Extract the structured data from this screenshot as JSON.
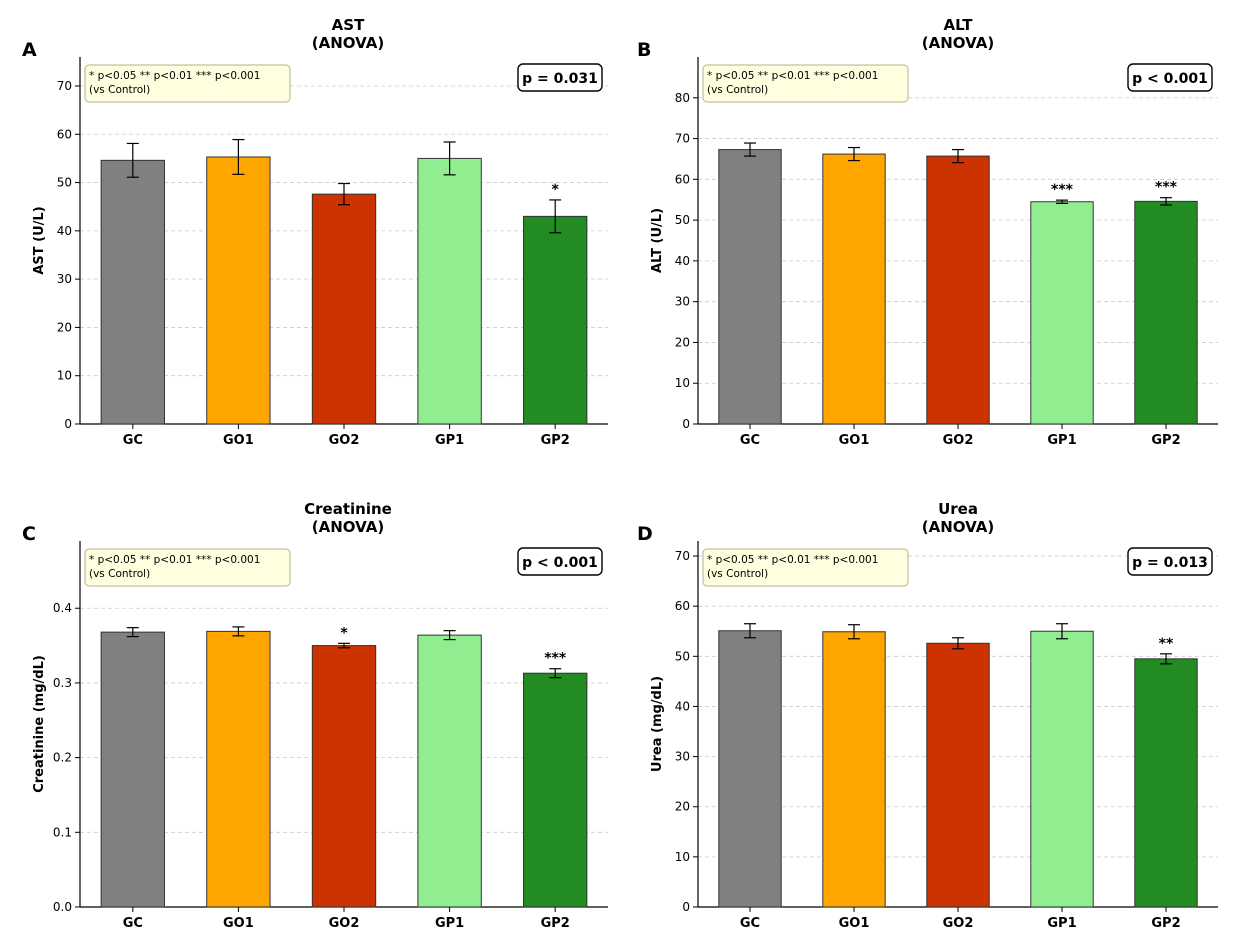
{
  "groups": [
    "GC",
    "GO1",
    "GO2",
    "GP1",
    "GP2"
  ],
  "colors": {
    "GC": "#808080",
    "GO1": "#FFA500",
    "GO2": "#CC3300",
    "GP1": "#90EE90",
    "GP2": "#228B22",
    "legend_bg": "#FFFFE0",
    "grid": "#cccccc"
  },
  "legend": {
    "line1": "* p<0.05  ** p<0.01  *** p<0.001",
    "line2": "(vs Control)"
  },
  "chart_data": [
    {
      "panel": "A",
      "type": "bar",
      "title_line1": "AST",
      "title_line2": "(ANOVA)",
      "ylabel": "AST (U/L)",
      "categories": [
        "GC",
        "GO1",
        "GO2",
        "GP1",
        "GP2"
      ],
      "values": [
        54.6,
        55.3,
        47.6,
        55.0,
        43.0
      ],
      "errors": [
        3.5,
        3.6,
        2.2,
        3.4,
        3.4
      ],
      "significance": [
        "",
        "",
        "",
        "",
        "*"
      ],
      "pvalue": "p = 0.031",
      "ylim": [
        0,
        76
      ],
      "yticks": [
        0,
        10,
        20,
        30,
        40,
        50,
        60,
        70
      ],
      "grid": true
    },
    {
      "panel": "B",
      "type": "bar",
      "title_line1": "ALT",
      "title_line2": "(ANOVA)",
      "ylabel": "ALT (U/L)",
      "categories": [
        "GC",
        "GO1",
        "GO2",
        "GP1",
        "GP2"
      ],
      "values": [
        67.3,
        66.2,
        65.7,
        54.5,
        54.6
      ],
      "errors": [
        1.6,
        1.6,
        1.6,
        0.4,
        0.9
      ],
      "significance": [
        "",
        "",
        "",
        "***",
        "***"
      ],
      "pvalue": "p < 0.001",
      "ylim": [
        0,
        90
      ],
      "yticks": [
        0,
        10,
        20,
        30,
        40,
        50,
        60,
        70,
        80
      ],
      "grid": true
    },
    {
      "panel": "C",
      "type": "bar",
      "title_line1": "Creatinine",
      "title_line2": "(ANOVA)",
      "ylabel": "Creatinine (mg/dL)",
      "categories": [
        "GC",
        "GO1",
        "GO2",
        "GP1",
        "GP2"
      ],
      "values": [
        0.368,
        0.369,
        0.35,
        0.364,
        0.313
      ],
      "errors": [
        0.006,
        0.006,
        0.003,
        0.006,
        0.006
      ],
      "significance": [
        "",
        "",
        "*",
        "",
        "***"
      ],
      "pvalue": "p < 0.001",
      "ylim": [
        0,
        0.49
      ],
      "yticks": [
        0.0,
        0.1,
        0.2,
        0.3,
        0.4
      ],
      "grid": true
    },
    {
      "panel": "D",
      "type": "bar",
      "title_line1": "Urea",
      "title_line2": "(ANOVA)",
      "ylabel": "Urea (mg/dL)",
      "categories": [
        "GC",
        "GO1",
        "GO2",
        "GP1",
        "GP2"
      ],
      "values": [
        55.1,
        54.9,
        52.6,
        55.0,
        49.5
      ],
      "errors": [
        1.4,
        1.4,
        1.1,
        1.5,
        1.0
      ],
      "significance": [
        "",
        "",
        "",
        "",
        "**"
      ],
      "pvalue": "p = 0.013",
      "ylim": [
        0,
        73
      ],
      "yticks": [
        0,
        10,
        20,
        30,
        40,
        50,
        60,
        70
      ],
      "grid": true
    }
  ]
}
